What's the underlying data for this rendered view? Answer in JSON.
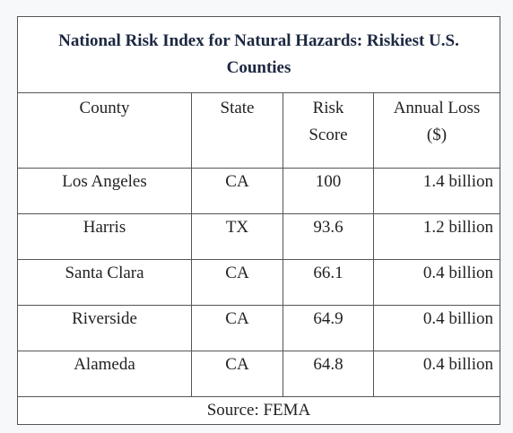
{
  "table": {
    "title": "National Risk Index for Natural Hazards: Riskiest U.S. Counties",
    "headers": [
      "County",
      "State",
      "Risk Score",
      "Annual Loss ($)"
    ],
    "rows": [
      [
        "Los Angeles",
        "CA",
        "100",
        "1.4 billion"
      ],
      [
        "Harris",
        "TX",
        "93.6",
        "1.2 billion"
      ],
      [
        "Santa Clara",
        "CA",
        "66.1",
        "0.4 billion"
      ],
      [
        "Riverside",
        "CA",
        "64.9",
        "0.4 billion"
      ],
      [
        "Alameda",
        "CA",
        "64.8",
        "0.4 billion"
      ]
    ],
    "source": "Source: FEMA"
  },
  "colors": {
    "title": "#1c2841",
    "border": "#555555",
    "text": "#222222",
    "background": "#f7f8fa"
  }
}
